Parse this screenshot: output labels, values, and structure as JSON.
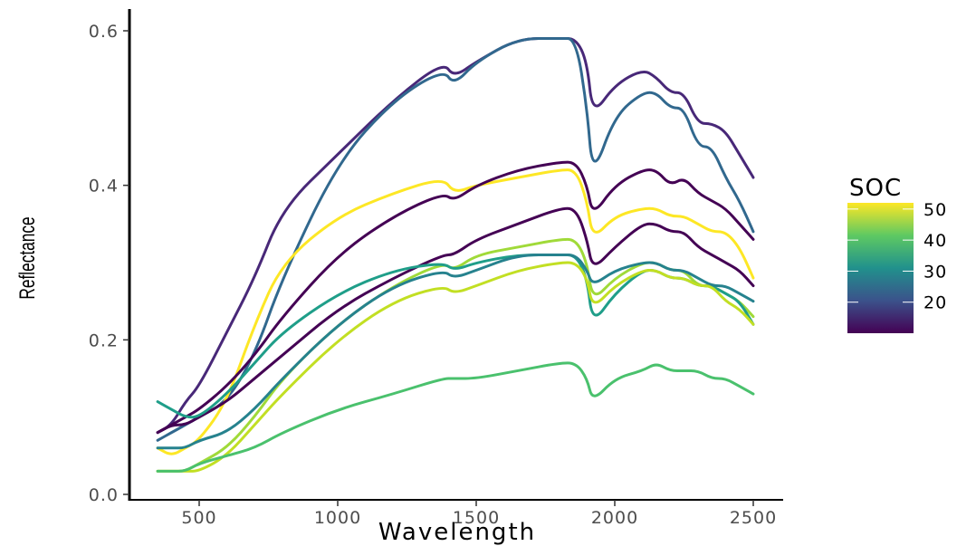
{
  "chart_data": {
    "type": "line",
    "xlabel": "Wavelength",
    "ylabel": "Reflectance",
    "xlim": [
      300,
      2540
    ],
    "ylim": [
      0,
      0.62
    ],
    "x_ticks": [
      500,
      1000,
      1500,
      2000,
      2500
    ],
    "y_ticks": [
      0.0,
      0.2,
      0.4,
      0.6
    ],
    "x_tick_labels": [
      "500",
      "1000",
      "1500",
      "2000",
      "2500"
    ],
    "y_tick_labels": [
      "0.0",
      "0.2",
      "0.4",
      "0.6"
    ],
    "grid": false,
    "legend": {
      "title": "SOC",
      "type": "colorbar",
      "placement": "right",
      "range": [
        10,
        52
      ],
      "ticks": [
        20,
        30,
        40,
        50
      ],
      "tick_labels": [
        "20",
        "30",
        "40",
        "50"
      ],
      "colors": [
        "#440154",
        "#3b528b",
        "#21918c",
        "#5ec962",
        "#fde725"
      ]
    },
    "x": [
      350,
      400,
      450,
      500,
      600,
      700,
      800,
      1000,
      1200,
      1380,
      1420,
      1500,
      1650,
      1800,
      1860,
      1900,
      1920,
      2000,
      2100,
      2150,
      2200,
      2250,
      2300,
      2350,
      2400,
      2450,
      2500
    ],
    "series": [
      {
        "color": "#482878",
        "values": [
          0.08,
          0.09,
          0.12,
          0.14,
          0.21,
          0.28,
          0.37,
          0.44,
          0.51,
          0.56,
          0.54,
          0.56,
          0.59,
          0.59,
          0.59,
          0.56,
          0.49,
          0.53,
          0.55,
          0.54,
          0.52,
          0.52,
          0.48,
          0.48,
          0.47,
          0.44,
          0.41
        ]
      },
      {
        "color": "#31688e",
        "values": [
          0.07,
          0.08,
          0.09,
          0.1,
          0.12,
          0.18,
          0.28,
          0.43,
          0.51,
          0.55,
          0.53,
          0.56,
          0.59,
          0.59,
          0.59,
          0.5,
          0.41,
          0.49,
          0.52,
          0.52,
          0.5,
          0.5,
          0.45,
          0.45,
          0.41,
          0.38,
          0.34
        ]
      },
      {
        "color": "#fde725",
        "values": [
          0.06,
          0.05,
          0.06,
          0.07,
          0.12,
          0.22,
          0.3,
          0.36,
          0.39,
          0.41,
          0.39,
          0.4,
          0.41,
          0.42,
          0.42,
          0.38,
          0.33,
          0.36,
          0.37,
          0.37,
          0.36,
          0.36,
          0.35,
          0.34,
          0.34,
          0.32,
          0.28
        ]
      },
      {
        "color": "#440154",
        "values": [
          0.08,
          0.09,
          0.1,
          0.11,
          0.14,
          0.18,
          0.23,
          0.31,
          0.36,
          0.39,
          0.38,
          0.4,
          0.42,
          0.43,
          0.43,
          0.4,
          0.36,
          0.4,
          0.42,
          0.42,
          0.4,
          0.41,
          0.39,
          0.38,
          0.37,
          0.35,
          0.33
        ]
      },
      {
        "color": "#440154",
        "values": [
          0.08,
          0.09,
          0.09,
          0.1,
          0.12,
          0.15,
          0.18,
          0.24,
          0.28,
          0.31,
          0.31,
          0.33,
          0.35,
          0.37,
          0.37,
          0.33,
          0.29,
          0.32,
          0.35,
          0.35,
          0.34,
          0.34,
          0.32,
          0.31,
          0.3,
          0.29,
          0.27
        ]
      },
      {
        "color": "#a0da39",
        "values": [
          0.03,
          0.03,
          0.03,
          0.04,
          0.06,
          0.1,
          0.15,
          0.22,
          0.27,
          0.3,
          0.29,
          0.31,
          0.32,
          0.33,
          0.33,
          0.3,
          0.25,
          0.28,
          0.3,
          0.3,
          0.29,
          0.29,
          0.27,
          0.27,
          0.26,
          0.25,
          0.23
        ]
      },
      {
        "color": "#1f9e89",
        "values": [
          0.12,
          0.11,
          0.1,
          0.1,
          0.13,
          0.17,
          0.21,
          0.26,
          0.29,
          0.3,
          0.29,
          0.3,
          0.31,
          0.31,
          0.31,
          0.28,
          0.22,
          0.26,
          0.29,
          0.29,
          0.28,
          0.28,
          0.27,
          0.27,
          0.26,
          0.25,
          0.22
        ]
      },
      {
        "color": "#26828e",
        "values": [
          0.06,
          0.06,
          0.06,
          0.07,
          0.08,
          0.11,
          0.15,
          0.22,
          0.27,
          0.29,
          0.28,
          0.29,
          0.31,
          0.31,
          0.31,
          0.29,
          0.27,
          0.29,
          0.3,
          0.3,
          0.29,
          0.29,
          0.28,
          0.27,
          0.27,
          0.26,
          0.25
        ]
      },
      {
        "color": "#c2df23",
        "values": [
          0.03,
          0.03,
          0.03,
          0.03,
          0.05,
          0.09,
          0.13,
          0.2,
          0.25,
          0.27,
          0.26,
          0.27,
          0.29,
          0.3,
          0.3,
          0.28,
          0.24,
          0.27,
          0.29,
          0.29,
          0.28,
          0.28,
          0.27,
          0.27,
          0.25,
          0.24,
          0.22
        ]
      },
      {
        "color": "#4ac16d",
        "values": [
          0.03,
          0.03,
          0.03,
          0.04,
          0.05,
          0.06,
          0.08,
          0.11,
          0.13,
          0.15,
          0.15,
          0.15,
          0.16,
          0.17,
          0.17,
          0.15,
          0.12,
          0.15,
          0.16,
          0.17,
          0.16,
          0.16,
          0.16,
          0.15,
          0.15,
          0.14,
          0.13
        ]
      }
    ]
  }
}
